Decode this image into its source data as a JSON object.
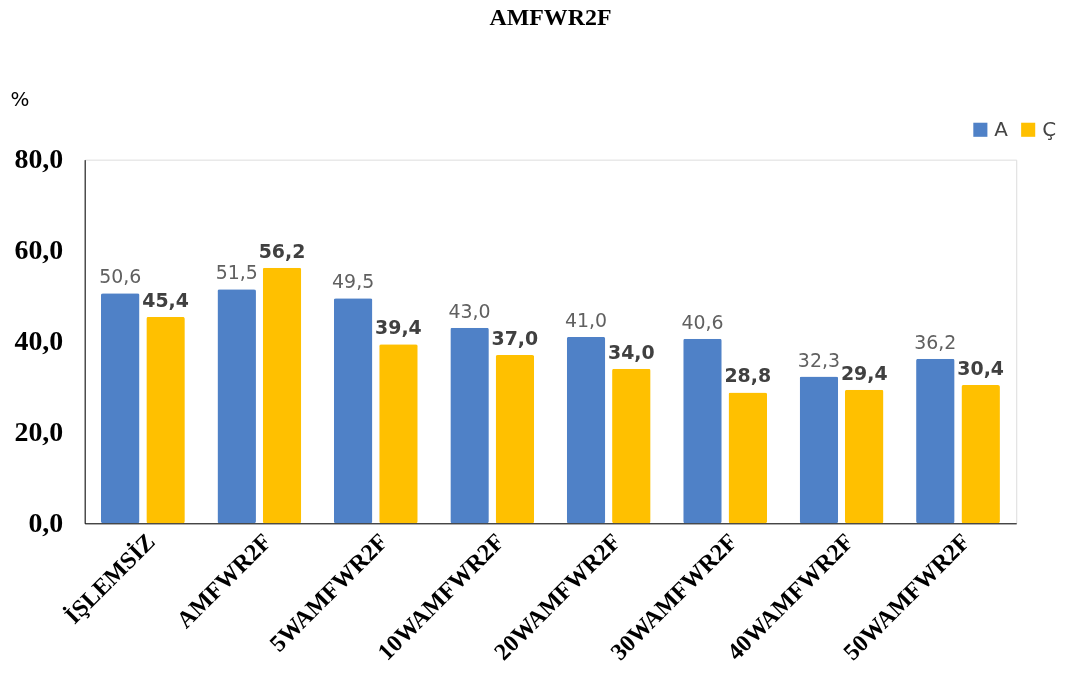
{
  "chart_data": {
    "type": "bar",
    "title": "AMFWR2F",
    "ylabel": "%",
    "categories": [
      "İŞLEMSİZ",
      "AMFWR2F",
      "5WAMFWR2F",
      "10WAMFWR2F",
      "20WAMFWR2F",
      "30WAMFWR2F",
      "40WAMFWR2F",
      "50WAMFWR2F"
    ],
    "series": [
      {
        "name": "A",
        "color": "#4f81c7",
        "values": [
          50.6,
          51.5,
          49.5,
          43.0,
          41.0,
          40.6,
          32.3,
          36.2
        ],
        "value_labels": [
          "50,6",
          "51,5",
          "49,5",
          "43,0",
          "41,0",
          "40,6",
          "32,3",
          "36,2"
        ]
      },
      {
        "name": "Ç",
        "color": "#ffc000",
        "values": [
          45.4,
          56.2,
          39.4,
          37.0,
          34.0,
          28.8,
          29.4,
          30.4
        ],
        "value_labels": [
          "45,4",
          "56,2",
          "39,4",
          "37,0",
          "34,0",
          "28,8",
          "29,4",
          "30,4"
        ]
      }
    ],
    "ylim": [
      0,
      80
    ],
    "yticks": [
      {
        "value": 0,
        "label": "0,0"
      },
      {
        "value": 20,
        "label": "20,0"
      },
      {
        "value": 40,
        "label": "40,0"
      },
      {
        "value": 60,
        "label": "60,0"
      },
      {
        "value": 80,
        "label": "80,0"
      }
    ],
    "grid": false,
    "legend": "top right"
  }
}
